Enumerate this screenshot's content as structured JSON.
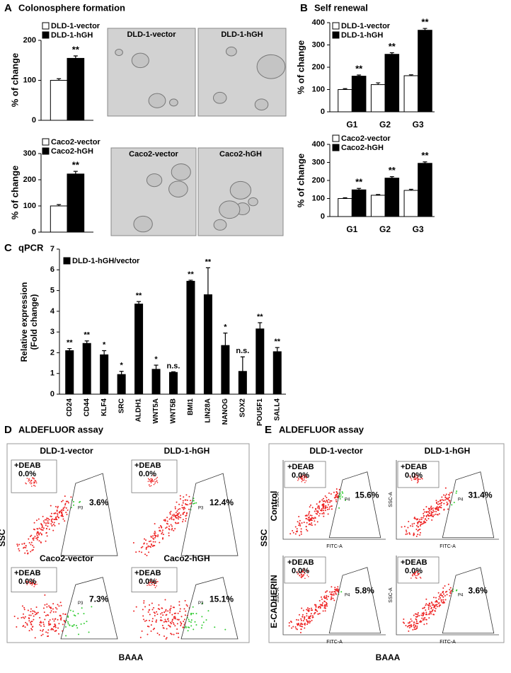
{
  "panels": [
    {
      "label": "A",
      "title": "Colonosphere formation"
    },
    {
      "label": "B",
      "title": "Self renewal"
    },
    {
      "label": "C",
      "title": "qPCR"
    },
    {
      "label": "D",
      "title": "ALDEFLUOR assay"
    },
    {
      "label": "E",
      "title": "ALDEFLUOR assay"
    }
  ],
  "images": [
    {
      "label": "DLD-1-vector"
    },
    {
      "label": "DLD-1-hGH"
    },
    {
      "label": "Caco2-vector"
    },
    {
      "label": "Caco2-hGH"
    }
  ],
  "chart_data": [
    {
      "type": "bar",
      "ylabel": "% of change",
      "ylim": [
        0,
        200
      ],
      "yticks": [
        0,
        100,
        200
      ],
      "series": [
        {
          "name": "DLD-1-vector",
          "color": "#ffffff",
          "values": [
            100
          ],
          "errors": [
            4
          ]
        },
        {
          "name": "DLD-1-hGH",
          "color": "#000000",
          "values": [
            155
          ],
          "errors": [
            6
          ],
          "annotations": [
            "**"
          ]
        }
      ]
    },
    {
      "type": "bar",
      "ylabel": "% of change",
      "ylim": [
        0,
        300
      ],
      "yticks": [
        0,
        100,
        200,
        300
      ],
      "series": [
        {
          "name": "Caco2-vector",
          "color": "#ffffff",
          "values": [
            100
          ],
          "errors": [
            5
          ]
        },
        {
          "name": "Caco2-hGH",
          "color": "#000000",
          "values": [
            222
          ],
          "errors": [
            10
          ],
          "annotations": [
            "**"
          ]
        }
      ]
    },
    {
      "type": "bar",
      "ylabel": "% of change",
      "categories": [
        "G1",
        "G2",
        "G3"
      ],
      "ylim": [
        0,
        400
      ],
      "yticks": [
        0,
        100,
        200,
        300,
        400
      ],
      "series": [
        {
          "name": "DLD-1-vector",
          "color": "#ffffff",
          "values": [
            100,
            122,
            162
          ],
          "errors": [
            4,
            8,
            4
          ]
        },
        {
          "name": "DLD-1-hGH",
          "color": "#000000",
          "values": [
            160,
            258,
            366
          ],
          "errors": [
            5,
            7,
            8
          ],
          "annotations": [
            "**",
            "**",
            "**"
          ]
        }
      ]
    },
    {
      "type": "bar",
      "ylabel": "% of change",
      "categories": [
        "G1",
        "G2",
        "G3"
      ],
      "ylim": [
        0,
        400
      ],
      "yticks": [
        0,
        100,
        200,
        300,
        400
      ],
      "series": [
        {
          "name": "Caco2-vector",
          "color": "#ffffff",
          "values": [
            100,
            118,
            145
          ],
          "errors": [
            4,
            4,
            6
          ]
        },
        {
          "name": "Caco2-hGH",
          "color": "#000000",
          "values": [
            148,
            213,
            295
          ],
          "errors": [
            8,
            8,
            8
          ],
          "annotations": [
            "**",
            "**",
            "**"
          ]
        }
      ]
    },
    {
      "type": "bar",
      "ylabel": [
        "Relative expression",
        "(Fold change)"
      ],
      "categories": [
        "CD24",
        "CD44",
        "KLF4",
        "SRC",
        "ALDH1",
        "WNT5A",
        "WNT5B",
        "BMI1",
        "LIN28A",
        "NANOG",
        "SOX2",
        "POU5F1",
        "SALL4"
      ],
      "ylim": [
        0,
        7
      ],
      "yticks": [
        0,
        1,
        2,
        3,
        4,
        5,
        6,
        7
      ],
      "series": [
        {
          "name": "DLD-1-hGH/vector",
          "color": "#000000",
          "values": [
            2.1,
            2.45,
            1.9,
            0.95,
            4.35,
            1.2,
            1.05,
            5.45,
            4.8,
            2.35,
            1.1,
            3.15,
            2.05
          ],
          "errors": [
            0.1,
            0.12,
            0.2,
            0.15,
            0.12,
            0.2,
            0.03,
            0.05,
            1.3,
            0.6,
            0.7,
            0.3,
            0.2
          ],
          "annotations": [
            "**",
            "**",
            "*",
            "*",
            "**",
            "*",
            "n.s.",
            "**",
            "**",
            "*",
            "n.s.",
            "**",
            "**"
          ]
        }
      ]
    }
  ],
  "flow": [
    {
      "ylabel": "SSC",
      "xlabel": "BAAA",
      "plots": [
        {
          "title": "DLD-1-vector",
          "percent": "3.6%",
          "inset_label": "+DEAB",
          "inset_percent": "0.0%",
          "gate": "P3"
        },
        {
          "title": "DLD-1-hGH",
          "percent": "12.4%",
          "inset_label": "+DEAB",
          "inset_percent": "0.0%",
          "gate": "P3"
        },
        {
          "title": "Caco2-vector",
          "percent": "7.3%",
          "inset_label": "+DEAB",
          "inset_percent": "0.0%",
          "gate": "P3"
        },
        {
          "title": "Caco2-hGH",
          "percent": "15.1%",
          "inset_label": "+DEAB",
          "inset_percent": "0.0%",
          "gate": "P3"
        }
      ]
    },
    {
      "ylabel": "SSC",
      "xlabel": "BAAA",
      "column_titles": [
        "DLD-1-vector",
        "DLD-1-hGH"
      ],
      "row_labels": [
        "Control",
        "E-CADHERIN"
      ],
      "plots": [
        {
          "percent": "15.6%",
          "inset_label": "+DEAB",
          "inset_percent": "0.0%",
          "gate": "P4",
          "x_axis": "FITC-A",
          "y_axis": "SSC-A"
        },
        {
          "percent": "31.4%",
          "inset_label": "+DEAB",
          "inset_percent": "0.0%",
          "gate": "P4",
          "x_axis": "FITC-A",
          "y_axis": "SSC-A"
        },
        {
          "percent": "5.8%",
          "inset_label": "+DEAB",
          "inset_percent": "0.0%",
          "gate": "P4",
          "x_axis": "FITC-A",
          "y_axis": "SSC-A"
        },
        {
          "percent": "3.6%",
          "inset_label": "+DEAB",
          "inset_percent": "0.0%",
          "gate": "P4",
          "x_axis": "FITC-A",
          "y_axis": "SSC-A"
        }
      ]
    }
  ]
}
